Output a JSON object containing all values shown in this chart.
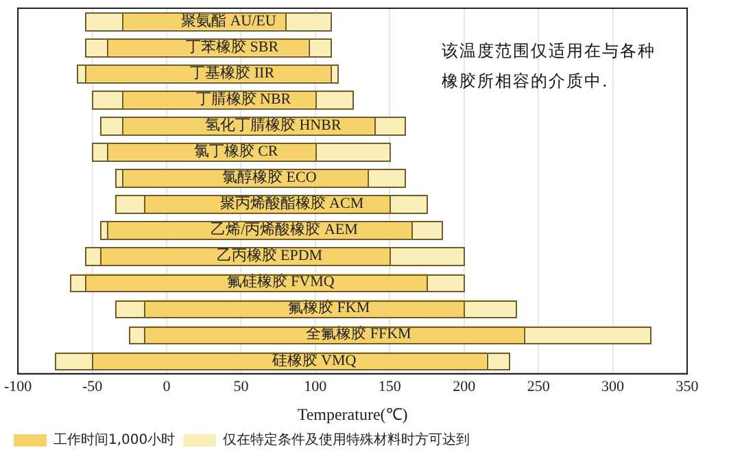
{
  "chart_data": {
    "type": "bar",
    "orientation": "horizontal",
    "xlabel": "Temperature(℃)",
    "categories": [
      "聚氨酯 AU/EU",
      "丁苯橡胶 SBR",
      "丁基橡胶 IIR",
      "丁腈橡胶 NBR",
      "氢化丁腈橡胶 HNBR",
      "氯丁橡胶 CR",
      "氯醇橡胶 ECO",
      "聚丙烯酸酯橡胶 ACM",
      "乙烯/丙烯酸橡胶 AEM",
      "乙丙橡胶 EPDM",
      "氟硅橡胶 FVMQ",
      "氟橡胶 FKM",
      "全氟橡胶 FFKM",
      "硅橡胶 VMQ"
    ],
    "series": [
      {
        "color": "#fbefb9",
        "base": [
          -55,
          -55,
          -60,
          -50,
          -45,
          -50,
          -35,
          -35,
          -45,
          -55,
          -65,
          -35,
          -25,
          -75
        ],
        "values": [
          25,
          15,
          5,
          20,
          15,
          10,
          5,
          20,
          5,
          10,
          10,
          20,
          10,
          25
        ]
      },
      {
        "name": "工作时间1,000小时",
        "color": "#f5d36a",
        "base": [
          -30,
          -40,
          -55,
          -30,
          -30,
          -40,
          -30,
          -15,
          -40,
          -45,
          -55,
          -15,
          -15,
          -50
        ],
        "values": [
          110,
          135,
          165,
          130,
          170,
          140,
          165,
          165,
          205,
          195,
          230,
          215,
          255,
          265
        ]
      },
      {
        "name": "仅在特定条件及使用特殊材料时方可达到",
        "color": "#fbefb9",
        "base": [
          80,
          95,
          110,
          100,
          140,
          100,
          135,
          150,
          165,
          150,
          175,
          200,
          240,
          215
        ],
        "values": [
          30,
          15,
          5,
          25,
          20,
          50,
          25,
          25,
          20,
          50,
          25,
          35,
          85,
          15
        ]
      }
    ],
    "xlim": [
      -100,
      350
    ],
    "xticks": [
      -100,
      -50,
      0,
      50,
      100,
      150,
      200,
      250,
      300,
      350
    ],
    "grid": "x",
    "legend": "bottom",
    "annotations": [
      "该温度范围仅适用在与各种橡胶所相容的介质中."
    ]
  }
}
